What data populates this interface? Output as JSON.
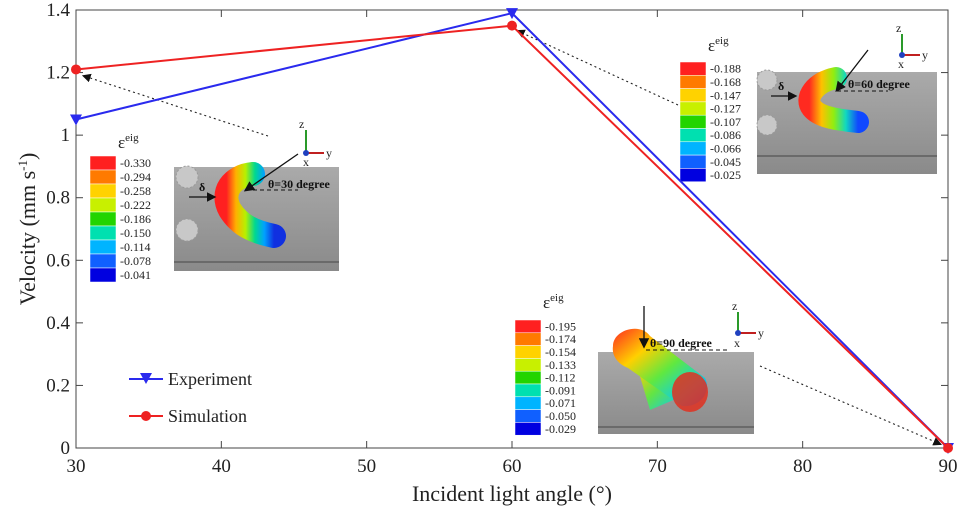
{
  "chart_data": {
    "type": "line",
    "xlabel": "Incident light angle (°)",
    "ylabel_main": "Velocity (mm s",
    "ylabel_sup": "-1",
    "ylabel_end": ")",
    "xlim": [
      30,
      90
    ],
    "ylim": [
      0,
      1.4
    ],
    "xticks": [
      "30",
      "40",
      "50",
      "60",
      "70",
      "80",
      "90"
    ],
    "yticks": [
      "0",
      "0.2",
      "0.4",
      "0.6",
      "0.8",
      "1",
      "1.2",
      "1.4"
    ],
    "series": [
      {
        "name": "Experiment",
        "color": "#2a2aee",
        "marker": "triangle-down",
        "x": [
          30,
          60,
          90
        ],
        "y": [
          1.05,
          1.39,
          0.0
        ]
      },
      {
        "name": "Simulation",
        "color": "#ee2222",
        "marker": "circle",
        "x": [
          30,
          60,
          90
        ],
        "y": [
          1.21,
          1.35,
          0.0
        ]
      }
    ],
    "legend_position": "bottom-left",
    "grid": false
  },
  "insets": [
    {
      "symbol": "ε",
      "sup": "eig",
      "scale": [
        "-0.330",
        "-0.294",
        "-0.258",
        "-0.222",
        "-0.186",
        "-0.150",
        "-0.114",
        "-0.078",
        "-0.041"
      ],
      "angle_label": "θ=30 degree",
      "delta": "δ",
      "axes": {
        "z": "z",
        "y": "y",
        "x": "x"
      }
    },
    {
      "symbol": "ε",
      "sup": "eig",
      "scale": [
        "-0.188",
        "-0.168",
        "-0.147",
        "-0.127",
        "-0.107",
        "-0.086",
        "-0.066",
        "-0.045",
        "-0.025"
      ],
      "angle_label": "θ=60 degree",
      "delta": "δ",
      "axes": {
        "z": "z",
        "y": "y",
        "x": "x"
      }
    },
    {
      "symbol": "ε",
      "sup": "eig",
      "scale": [
        "-0.195",
        "-0.174",
        "-0.154",
        "-0.133",
        "-0.112",
        "-0.091",
        "-0.071",
        "-0.050",
        "-0.029"
      ],
      "angle_label": "θ=90 degree",
      "axes": {
        "z": "z",
        "y": "y",
        "x": "x"
      }
    }
  ],
  "colorbar_colors": [
    "#ff2020",
    "#ff7a00",
    "#ffd200",
    "#c8f000",
    "#22d400",
    "#00e0b0",
    "#00b4ff",
    "#1060ff",
    "#0000e0"
  ]
}
